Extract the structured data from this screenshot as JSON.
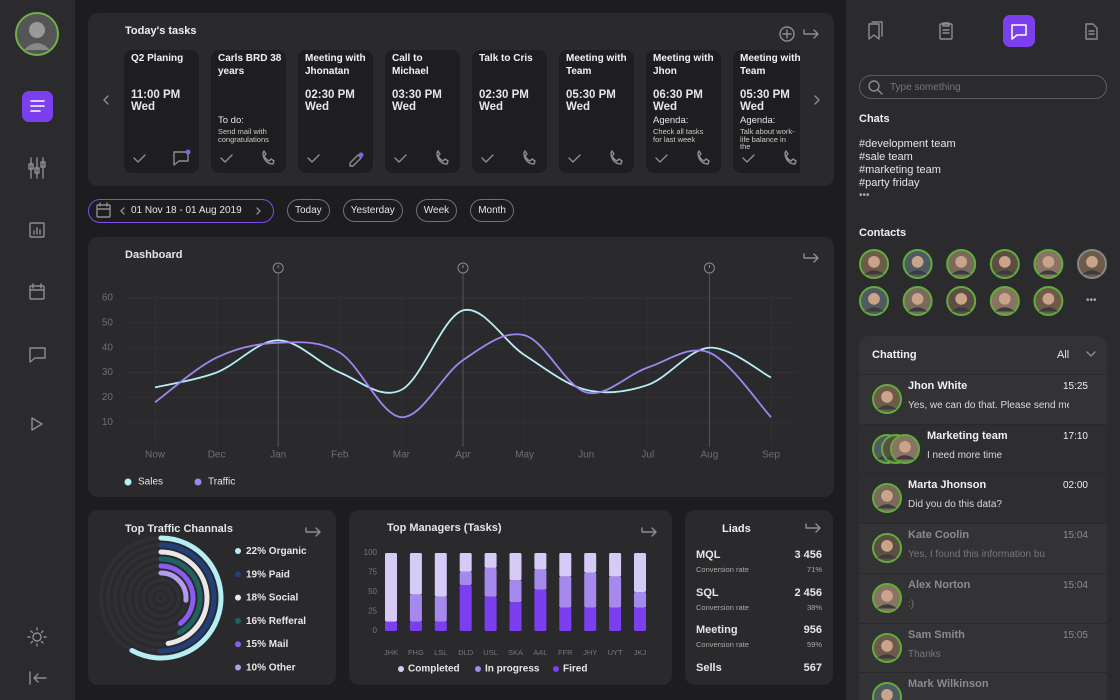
{
  "tasks": {
    "title": "Today's tasks",
    "items": [
      {
        "title": "Q2 Planing",
        "time": "11:00 PM",
        "day": "Wed"
      },
      {
        "title": "Carls BRD 38 years",
        "note_label": "To do:",
        "note": "Send mail with congratulations"
      },
      {
        "title": "Meeting with Jhonatan",
        "time": "02:30 PM",
        "day": "Wed"
      },
      {
        "title": "Call to Michael",
        "time": "03:30 PM",
        "day": "Wed"
      },
      {
        "title": "Talk to Cris",
        "time": "02:30 PM",
        "day": "Wed"
      },
      {
        "title": "Meeting with Team",
        "time": "05:30 PM",
        "day": "Wed"
      },
      {
        "title": "Meeting with Jhon",
        "time": "06:30 PM",
        "day": "Wed",
        "note_label": "Agenda:",
        "note": "Check all tasks for last week"
      },
      {
        "title": "Meeting with Team",
        "time": "05:30 PM",
        "day": "Wed",
        "note_label": "Agenda:",
        "note": "Talk about work-life balance in the"
      }
    ]
  },
  "filters": {
    "date_range": "01 Nov 18 - 01 Aug 2019",
    "periods": [
      "Today",
      "Yesterday",
      "Week",
      "Month"
    ]
  },
  "chart_data": [
    {
      "type": "line",
      "title": "Dashboard",
      "categories": [
        "Now",
        "Dec",
        "Jan",
        "Feb",
        "Mar",
        "Apr",
        "May",
        "Jun",
        "Jul",
        "Aug",
        "Sep"
      ],
      "series": [
        {
          "name": "Sales",
          "color": "#b5eef5",
          "values": [
            24,
            30,
            43,
            30,
            23,
            55,
            37,
            23,
            25,
            40,
            28
          ]
        },
        {
          "name": "Traffic",
          "color": "#9f86ee",
          "values": [
            18,
            36,
            42,
            38,
            12,
            35,
            45,
            22,
            32,
            38,
            12
          ]
        }
      ],
      "ylim": [
        0,
        60
      ],
      "yticks": [
        10,
        20,
        30,
        40,
        50,
        60
      ],
      "grid": true
    },
    {
      "type": "radial_bar",
      "title": "Top Traffic Channals",
      "categories": [
        "Organic",
        "Paid",
        "Social",
        "Refferal",
        "Mail",
        "Other"
      ],
      "values": [
        22,
        19,
        18,
        16,
        15,
        10
      ],
      "value_labels": [
        "22%",
        "19%",
        "18%",
        "16%",
        "15%",
        "10%"
      ],
      "colors": [
        "#b5eef5",
        "#233f7a",
        "#e8e8ea",
        "#1f6260",
        "#8a5cf0",
        "#b39cf0"
      ]
    },
    {
      "type": "stacked_bar",
      "title": "Top Managers (Tasks)",
      "categories": [
        "JHK",
        "FHG",
        "LSL",
        "DLD",
        "USL",
        "SKA",
        "AAL",
        "FFR",
        "JHY",
        "UYT",
        "JKJ"
      ],
      "series": [
        {
          "name": "Completed",
          "color": "#d6cbf6",
          "values": [
            88,
            53,
            56,
            24,
            19,
            35,
            21,
            30,
            25,
            30,
            50
          ]
        },
        {
          "name": "In progress",
          "color": "#a689ec",
          "values": [
            0,
            35,
            32,
            17,
            37,
            28,
            26,
            40,
            45,
            40,
            20
          ]
        },
        {
          "name": "Fired",
          "color": "#7b3ff0",
          "values": [
            12,
            12,
            12,
            59,
            44,
            37,
            53,
            30,
            30,
            30,
            30
          ]
        }
      ],
      "ylim": [
        0,
        100
      ],
      "yticks": [
        0,
        25,
        50,
        75,
        100
      ]
    }
  ],
  "leads": {
    "title": "Liads",
    "items": [
      {
        "name": "MQL",
        "value": "3 456",
        "caption": "Conversion rate",
        "rate": "71%"
      },
      {
        "name": "SQL",
        "value": "2 456",
        "caption": "Conversion rate",
        "rate": "38%"
      },
      {
        "name": "Meeting",
        "value": "956",
        "caption": "Conversion rate",
        "rate": "59%"
      },
      {
        "name": "Sells",
        "value": "567"
      }
    ]
  },
  "right_panel": {
    "search_placeholder": "Type something",
    "chats_title": "Chats",
    "chats": [
      "#development team",
      "#sale team",
      "#marketing team",
      "#party friday"
    ],
    "chats_more": "•••",
    "contacts_title": "Contacts",
    "contacts_more": "•••",
    "chatting": {
      "title": "Chatting",
      "filter": "All",
      "messages": [
        {
          "name": "Jhon White",
          "text": "Yes, we can do that. Please send me",
          "time": "15:25"
        },
        {
          "name": "Marketing team",
          "text": "I need more time",
          "time": "17:10"
        },
        {
          "name": "Marta Jhonson",
          "text": "Did you do this data?",
          "time": "02:00"
        },
        {
          "name": "Kate Coolin",
          "text": "Yes, I found this information bu",
          "time": "15:04"
        },
        {
          "name": "Alex Norton",
          "text": ":)",
          "time": "15:04"
        },
        {
          "name": "Sam Smith",
          "text": "Thanks",
          "time": "15:05"
        },
        {
          "name": "Mark Wilkinson"
        }
      ]
    }
  }
}
